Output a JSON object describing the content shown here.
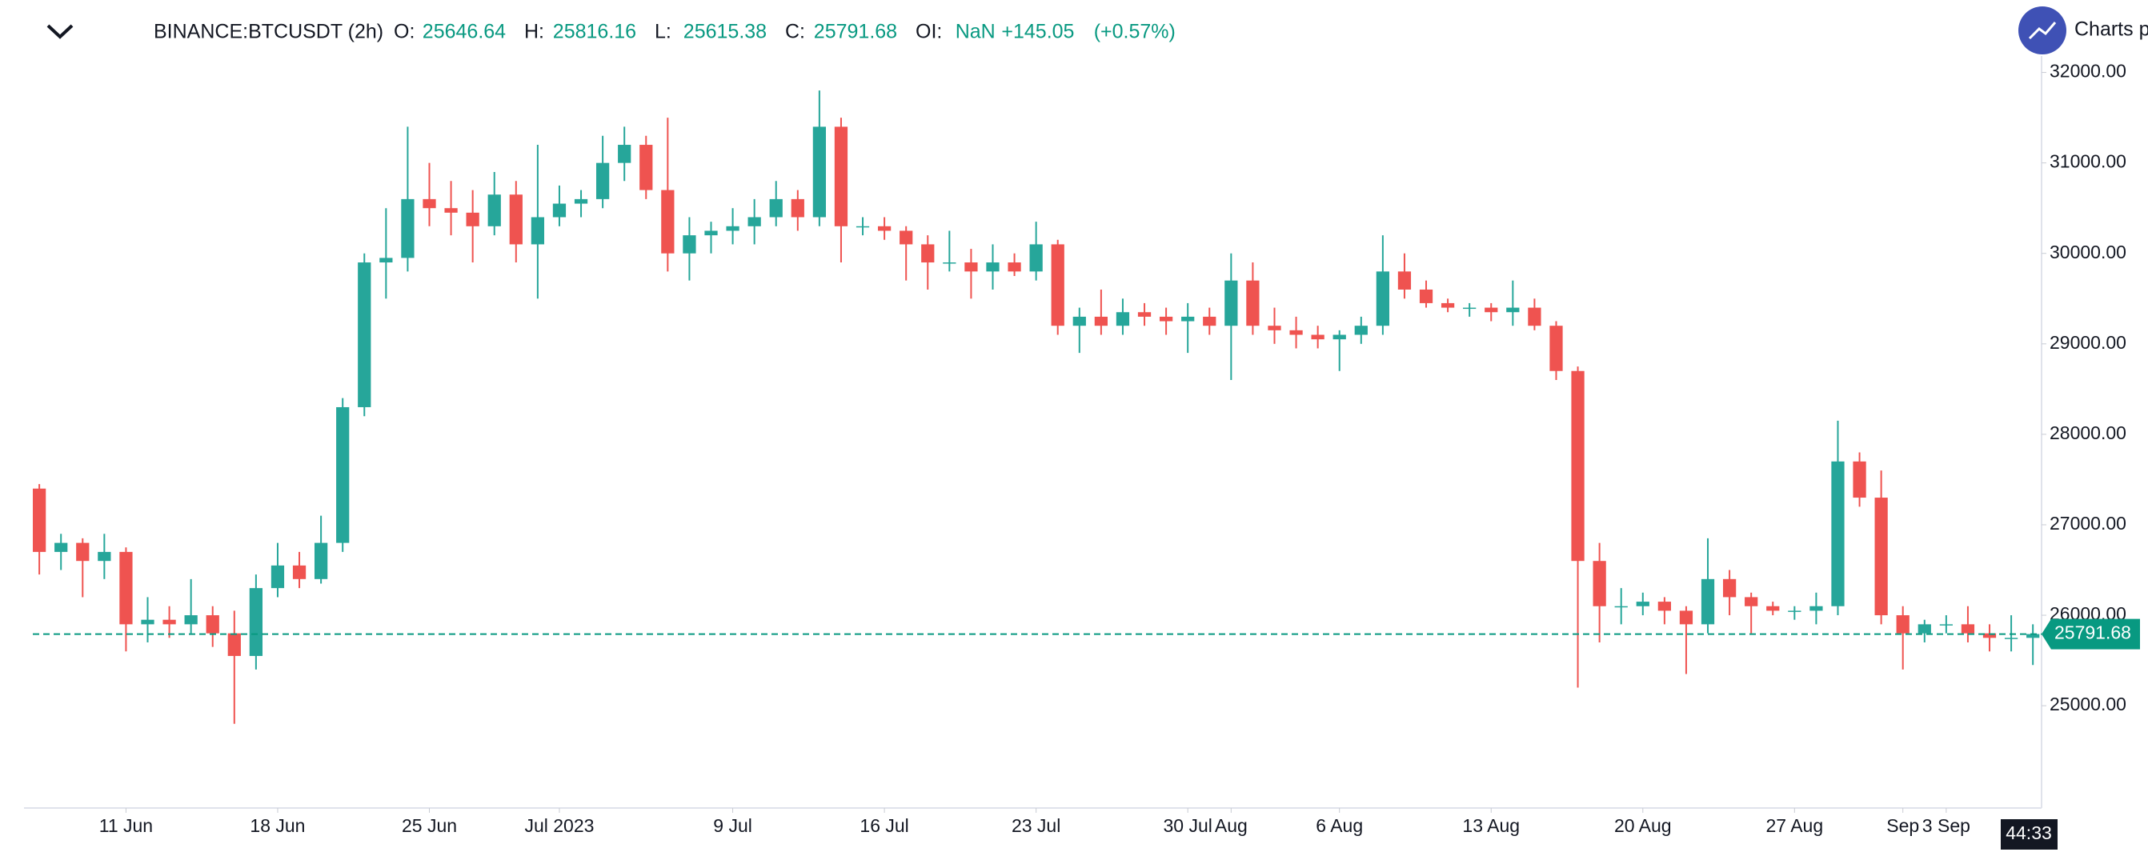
{
  "header": {
    "symbol": "BINANCE:BTCUSDT (2h)",
    "fields": [
      {
        "label": "O:",
        "value": "25646.64"
      },
      {
        "label": "H:",
        "value": "25816.16"
      },
      {
        "label": "L:",
        "value": "25615.38"
      },
      {
        "label": "C:",
        "value": "25791.68"
      },
      {
        "label": "OI:",
        "value": "NaN"
      }
    ],
    "change": "+145.05",
    "change_pct": "(+0.57%)",
    "brand": "Charts p"
  },
  "chart_data": {
    "type": "candlestick",
    "up_color": "#26a69a",
    "down_color": "#ef5350",
    "xlim": [
      5.7,
      98.4
    ],
    "xticks": [
      {
        "value": 10,
        "label": "11 Jun"
      },
      {
        "value": 17,
        "label": "18 Jun"
      },
      {
        "value": 24,
        "label": "25 Jun"
      },
      {
        "value": 30,
        "label": "Jul 2023"
      },
      {
        "value": 38,
        "label": "9 Jul"
      },
      {
        "value": 45,
        "label": "16 Jul"
      },
      {
        "value": 52,
        "label": "23 Jul"
      },
      {
        "value": 59,
        "label": "30 Jul"
      },
      {
        "value": 61,
        "label": "Aug"
      },
      {
        "value": 66,
        "label": "6 Aug"
      },
      {
        "value": 73,
        "label": "13 Aug"
      },
      {
        "value": 80,
        "label": "20 Aug"
      },
      {
        "value": 87,
        "label": "27 Aug"
      },
      {
        "value": 92,
        "label": "Sep"
      },
      {
        "value": 94,
        "label": "3 Sep"
      }
    ],
    "ylim": [
      23940,
      32120
    ],
    "yticks": [
      {
        "value": 25000,
        "label": "25000.00"
      },
      {
        "value": 26000,
        "label": "26000.00"
      },
      {
        "value": 27000,
        "label": "27000.00"
      },
      {
        "value": 28000,
        "label": "28000.00"
      },
      {
        "value": 29000,
        "label": "29000.00"
      },
      {
        "value": 30000,
        "label": "30000.00"
      },
      {
        "value": 31000,
        "label": "31000.00"
      },
      {
        "value": 32000,
        "label": "32000.00"
      }
    ],
    "last_price": {
      "value": 25791.68,
      "label": "25791.68"
    },
    "countdown": "44:33",
    "x": [
      6,
      7,
      8,
      9,
      10,
      11,
      12,
      13,
      14,
      15,
      16,
      17,
      18,
      19,
      20,
      21,
      22,
      23,
      24,
      25,
      26,
      27,
      28,
      29,
      30,
      31,
      32,
      33,
      34,
      35,
      36,
      37,
      38,
      39,
      40,
      41,
      42,
      43,
      44,
      45,
      46,
      47,
      48,
      49,
      50,
      51,
      52,
      53,
      54,
      55,
      56,
      57,
      58,
      59,
      60,
      61,
      62,
      63,
      64,
      65,
      66,
      67,
      68,
      69,
      70,
      71,
      72,
      73,
      74,
      75,
      76,
      77,
      78,
      79,
      80,
      81,
      82,
      83,
      84,
      85,
      86,
      87,
      88,
      89,
      90,
      91,
      92,
      93,
      94,
      95,
      96,
      97,
      98
    ],
    "ohlc": [
      [
        27400,
        27450,
        26450,
        26700
      ],
      [
        26700,
        26900,
        26500,
        26800
      ],
      [
        26800,
        26850,
        26200,
        26600
      ],
      [
        26600,
        26900,
        26400,
        26700
      ],
      [
        26700,
        26750,
        25600,
        25900
      ],
      [
        25900,
        26200,
        25700,
        25950
      ],
      [
        25950,
        26100,
        25750,
        25900
      ],
      [
        25900,
        26400,
        25800,
        26000
      ],
      [
        26000,
        26100,
        25650,
        25800
      ],
      [
        25800,
        26050,
        24800,
        25550
      ],
      [
        25550,
        26450,
        25400,
        26300
      ],
      [
        26300,
        26800,
        26200,
        26550
      ],
      [
        26550,
        26700,
        26300,
        26400
      ],
      [
        26400,
        27100,
        26350,
        26800
      ],
      [
        26800,
        28400,
        26700,
        28300
      ],
      [
        28300,
        30000,
        28200,
        29900
      ],
      [
        29900,
        30500,
        29500,
        29950
      ],
      [
        29950,
        31400,
        29800,
        30600
      ],
      [
        30600,
        31000,
        30300,
        30500
      ],
      [
        30500,
        30800,
        30200,
        30450
      ],
      [
        30450,
        30700,
        29900,
        30300
      ],
      [
        30300,
        30900,
        30200,
        30650
      ],
      [
        30650,
        30800,
        29900,
        30100
      ],
      [
        30100,
        31200,
        29500,
        30400
      ],
      [
        30400,
        30750,
        30300,
        30550
      ],
      [
        30550,
        30700,
        30400,
        30600
      ],
      [
        30600,
        31300,
        30500,
        31000
      ],
      [
        31000,
        31400,
        30800,
        31200
      ],
      [
        31200,
        31300,
        30600,
        30700
      ],
      [
        30700,
        31500,
        29800,
        30000
      ],
      [
        30000,
        30400,
        29700,
        30200
      ],
      [
        30200,
        30350,
        30000,
        30250
      ],
      [
        30250,
        30500,
        30100,
        30300
      ],
      [
        30300,
        30600,
        30100,
        30400
      ],
      [
        30400,
        30800,
        30300,
        30600
      ],
      [
        30600,
        30700,
        30250,
        30400
      ],
      [
        30400,
        31800,
        30300,
        31400
      ],
      [
        31400,
        31500,
        29900,
        30300
      ],
      [
        30300,
        30400,
        30200,
        30300
      ],
      [
        30300,
        30400,
        30150,
        30250
      ],
      [
        30250,
        30300,
        29700,
        30100
      ],
      [
        30100,
        30200,
        29600,
        29900
      ],
      [
        29900,
        30250,
        29800,
        29900
      ],
      [
        29900,
        30050,
        29500,
        29800
      ],
      [
        29800,
        30100,
        29600,
        29900
      ],
      [
        29900,
        30000,
        29750,
        29800
      ],
      [
        29800,
        30350,
        29700,
        30100
      ],
      [
        30100,
        30150,
        29100,
        29200
      ],
      [
        29200,
        29400,
        28900,
        29300
      ],
      [
        29300,
        29600,
        29100,
        29200
      ],
      [
        29200,
        29500,
        29100,
        29350
      ],
      [
        29350,
        29450,
        29200,
        29300
      ],
      [
        29300,
        29400,
        29100,
        29250
      ],
      [
        29250,
        29450,
        28900,
        29300
      ],
      [
        29300,
        29400,
        29100,
        29200
      ],
      [
        29200,
        30000,
        28600,
        29700
      ],
      [
        29700,
        29900,
        29100,
        29200
      ],
      [
        29200,
        29400,
        29000,
        29150
      ],
      [
        29150,
        29300,
        28950,
        29100
      ],
      [
        29100,
        29200,
        28950,
        29050
      ],
      [
        29050,
        29150,
        28700,
        29100
      ],
      [
        29100,
        29300,
        29000,
        29200
      ],
      [
        29200,
        30200,
        29100,
        29800
      ],
      [
        29800,
        30000,
        29500,
        29600
      ],
      [
        29600,
        29700,
        29400,
        29450
      ],
      [
        29450,
        29500,
        29350,
        29400
      ],
      [
        29400,
        29450,
        29300,
        29400
      ],
      [
        29400,
        29450,
        29250,
        29350
      ],
      [
        29350,
        29700,
        29200,
        29400
      ],
      [
        29400,
        29500,
        29150,
        29200
      ],
      [
        29200,
        29250,
        28600,
        28700
      ],
      [
        28700,
        28750,
        25200,
        26600
      ],
      [
        26600,
        26800,
        25700,
        26100
      ],
      [
        26100,
        26300,
        25900,
        26100
      ],
      [
        26100,
        26250,
        26000,
        26150
      ],
      [
        26150,
        26200,
        25900,
        26050
      ],
      [
        26050,
        26100,
        25350,
        25900
      ],
      [
        25900,
        26850,
        25800,
        26400
      ],
      [
        26400,
        26500,
        26000,
        26200
      ],
      [
        26200,
        26250,
        25800,
        26100
      ],
      [
        26100,
        26150,
        26000,
        26050
      ],
      [
        26050,
        26100,
        25950,
        26050
      ],
      [
        26050,
        26250,
        25900,
        26100
      ],
      [
        26100,
        28150,
        26000,
        27700
      ],
      [
        27700,
        27800,
        27200,
        27300
      ],
      [
        27300,
        27600,
        25900,
        26000
      ],
      [
        26000,
        26100,
        25400,
        25800
      ],
      [
        25800,
        25950,
        25700,
        25900
      ],
      [
        25900,
        26000,
        25800,
        25900
      ],
      [
        25900,
        26100,
        25700,
        25800
      ],
      [
        25800,
        25900,
        25600,
        25750
      ],
      [
        25750,
        26000,
        25600,
        25750
      ],
      [
        25750,
        25900,
        25450,
        25792
      ]
    ]
  }
}
